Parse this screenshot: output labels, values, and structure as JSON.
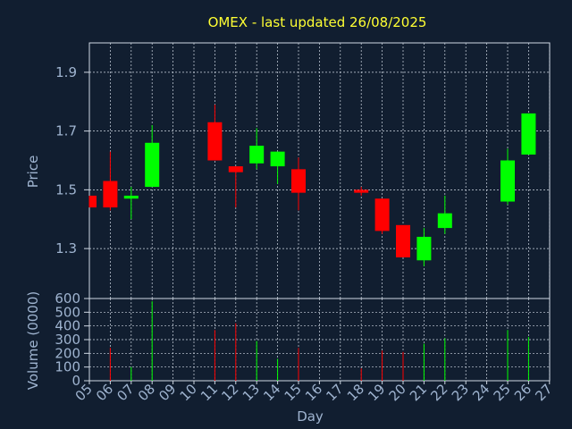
{
  "chart_data": {
    "type": "candlestick",
    "title": "OMEX - last updated 26/08/2025",
    "ylabel": "Price",
    "volume_ylabel": "Volume (0000)",
    "xlabel": "Day",
    "price_ylim": [
      1.13,
      2.0
    ],
    "price_ticks": [
      "1.3",
      "1.5",
      "1.7",
      "1.9"
    ],
    "volume_ylim": [
      0,
      600
    ],
    "volume_ticks": [
      "0",
      "100",
      "200",
      "300",
      "400",
      "500",
      "600"
    ],
    "x_ticks": [
      "05",
      "06",
      "07",
      "08",
      "09",
      "10",
      "11",
      "12",
      "13",
      "14",
      "15",
      "16",
      "17",
      "18",
      "19",
      "20",
      "21",
      "22",
      "23",
      "24",
      "25",
      "26",
      "27"
    ],
    "grid": true,
    "colors": {
      "up": "#00ff00",
      "down": "#ff0000",
      "grid": "#cfd8e3",
      "background": "#111e30"
    },
    "candles": [
      {
        "day": "05",
        "open": 1.48,
        "high": 1.48,
        "low": 1.44,
        "close": 1.44,
        "volume": 0
      },
      {
        "day": "06",
        "open": 1.53,
        "high": 1.63,
        "low": 1.43,
        "close": 1.44,
        "volume": 240
      },
      {
        "day": "07",
        "open": 1.47,
        "high": 1.51,
        "low": 1.4,
        "close": 1.48,
        "volume": 100
      },
      {
        "day": "08",
        "open": 1.51,
        "high": 1.72,
        "low": 1.51,
        "close": 1.66,
        "volume": 580
      },
      {
        "day": "11",
        "open": 1.73,
        "high": 1.79,
        "low": 1.6,
        "close": 1.6,
        "volume": 370
      },
      {
        "day": "12",
        "open": 1.58,
        "high": 1.58,
        "low": 1.44,
        "close": 1.56,
        "volume": 420
      },
      {
        "day": "13",
        "open": 1.59,
        "high": 1.71,
        "low": 1.57,
        "close": 1.65,
        "volume": 290
      },
      {
        "day": "14",
        "open": 1.58,
        "high": 1.63,
        "low": 1.52,
        "close": 1.63,
        "volume": 160
      },
      {
        "day": "15",
        "open": 1.57,
        "high": 1.61,
        "low": 1.43,
        "close": 1.49,
        "volume": 240
      },
      {
        "day": "18",
        "open": 1.5,
        "high": 1.51,
        "low": 1.48,
        "close": 1.49,
        "volume": 90
      },
      {
        "day": "19",
        "open": 1.47,
        "high": 1.47,
        "low": 1.35,
        "close": 1.36,
        "volume": 220
      },
      {
        "day": "20",
        "open": 1.38,
        "high": 1.38,
        "low": 1.27,
        "close": 1.27,
        "volume": 210
      },
      {
        "day": "21",
        "open": 1.26,
        "high": 1.37,
        "low": 1.24,
        "close": 1.34,
        "volume": 270
      },
      {
        "day": "22",
        "open": 1.37,
        "high": 1.48,
        "low": 1.35,
        "close": 1.42,
        "volume": 310
      },
      {
        "day": "25",
        "open": 1.46,
        "high": 1.64,
        "low": 1.45,
        "close": 1.6,
        "volume": 370
      },
      {
        "day": "26",
        "open": 1.62,
        "high": 1.76,
        "low": 1.62,
        "close": 1.76,
        "volume": 320
      }
    ]
  }
}
